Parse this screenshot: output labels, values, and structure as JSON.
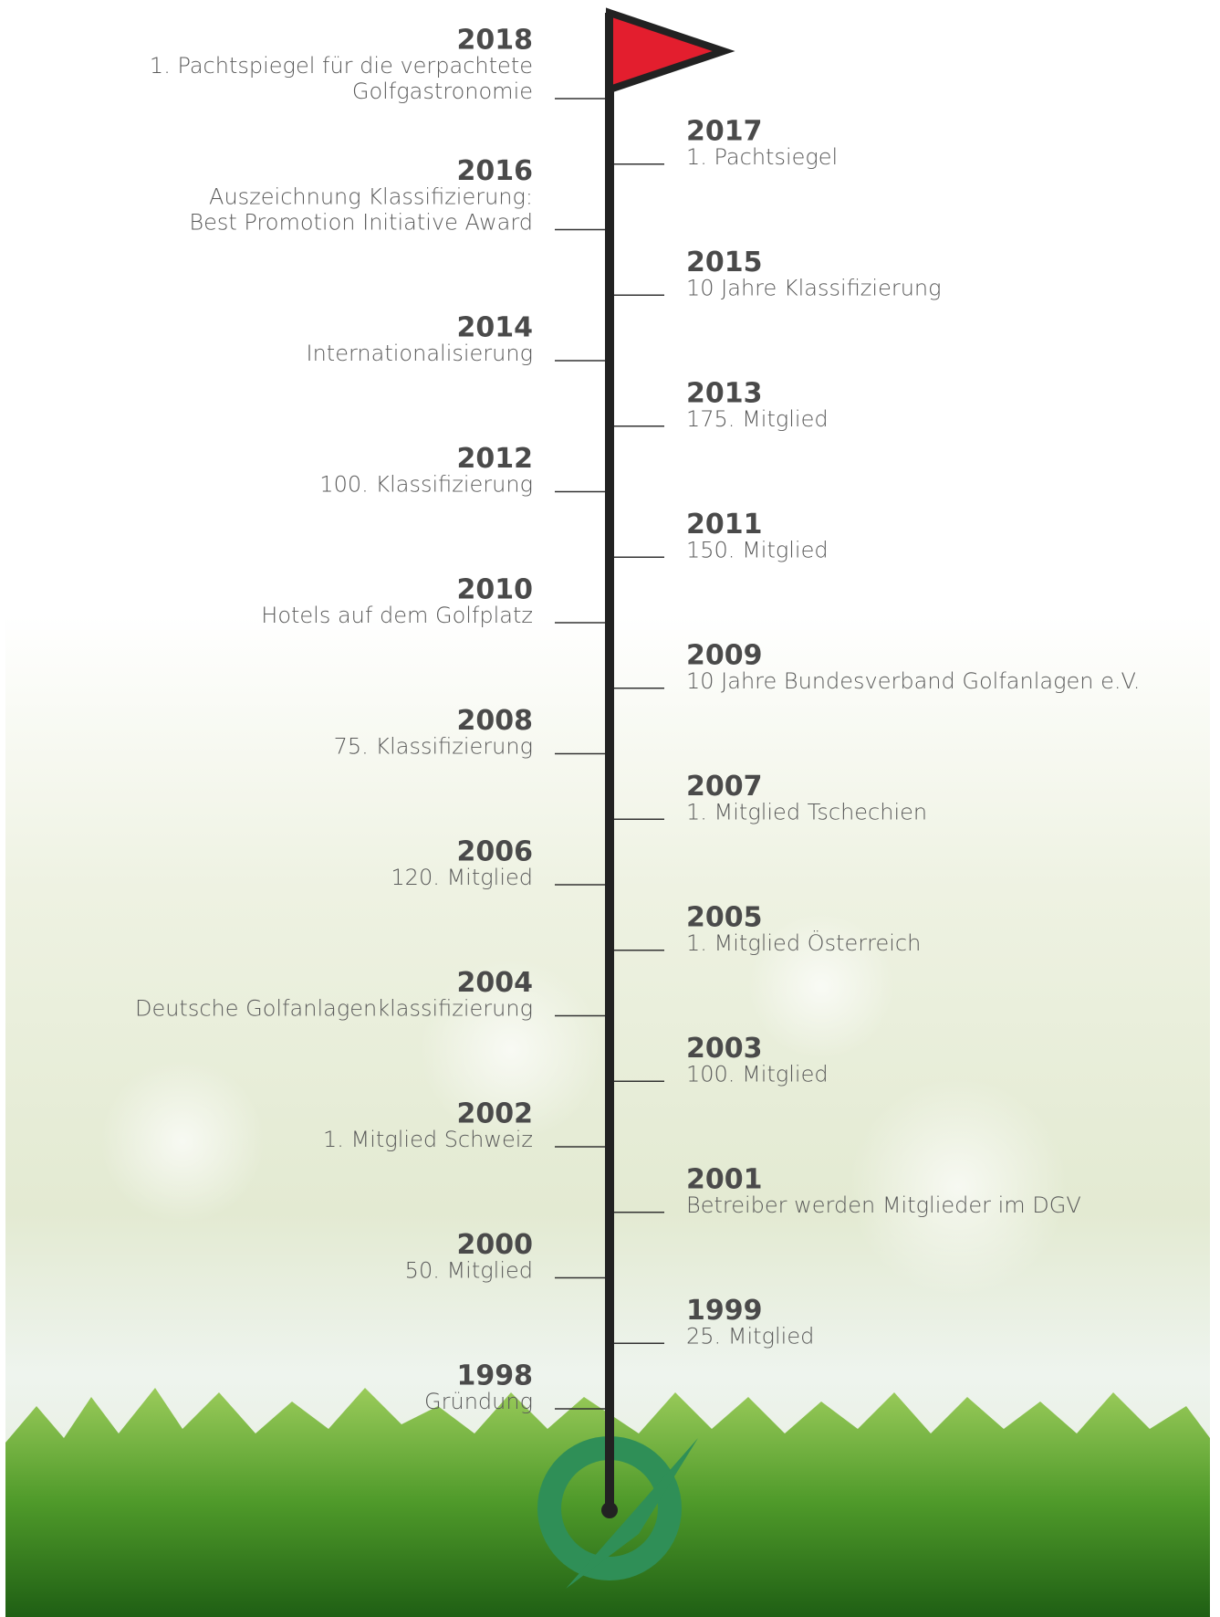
{
  "events": [
    {
      "year": "2018",
      "lines": [
        "1. Pachtspiegel für die verpachtete",
        "Golfgastronomie"
      ]
    },
    {
      "year": "2017",
      "lines": [
        "1. Pachtsiegel"
      ]
    },
    {
      "year": "2016",
      "lines": [
        "Auszeichnung Klassifizierung:",
        "Best Promotion Initiative Award"
      ]
    },
    {
      "year": "2015",
      "lines": [
        "10 Jahre Klassifizierung"
      ]
    },
    {
      "year": "2014",
      "lines": [
        "Internationalisierung"
      ]
    },
    {
      "year": "2013",
      "lines": [
        "175. Mitglied"
      ]
    },
    {
      "year": "2012",
      "lines": [
        "100. Klassifizierung"
      ]
    },
    {
      "year": "2011",
      "lines": [
        "150. Mitglied"
      ]
    },
    {
      "year": "2010",
      "lines": [
        "Hotels auf dem Golfplatz"
      ]
    },
    {
      "year": "2009",
      "lines": [
        "10 Jahre Bundesverband Golfanlagen e.V."
      ]
    },
    {
      "year": "2008",
      "lines": [
        "75. Klassifizierung"
      ]
    },
    {
      "year": "2007",
      "lines": [
        "1. Mitglied Tschechien"
      ]
    },
    {
      "year": "2006",
      "lines": [
        "120. Mitglied"
      ]
    },
    {
      "year": "2005",
      "lines": [
        "1. Mitglied Österreich"
      ]
    },
    {
      "year": "2004",
      "lines": [
        "Deutsche Golfanlagenklassifizierung"
      ]
    },
    {
      "year": "2003",
      "lines": [
        "100. Mitglied"
      ]
    },
    {
      "year": "2002",
      "lines": [
        "1. Mitglied Schweiz"
      ]
    },
    {
      "year": "2001",
      "lines": [
        "Betreiber werden Mitglieder im DGV"
      ]
    },
    {
      "year": "2000",
      "lines": [
        "50. Mitglied"
      ]
    },
    {
      "year": "1999",
      "lines": [
        "25. Mitglied"
      ]
    },
    {
      "year": "1998",
      "lines": [
        "Gründung"
      ]
    }
  ]
}
